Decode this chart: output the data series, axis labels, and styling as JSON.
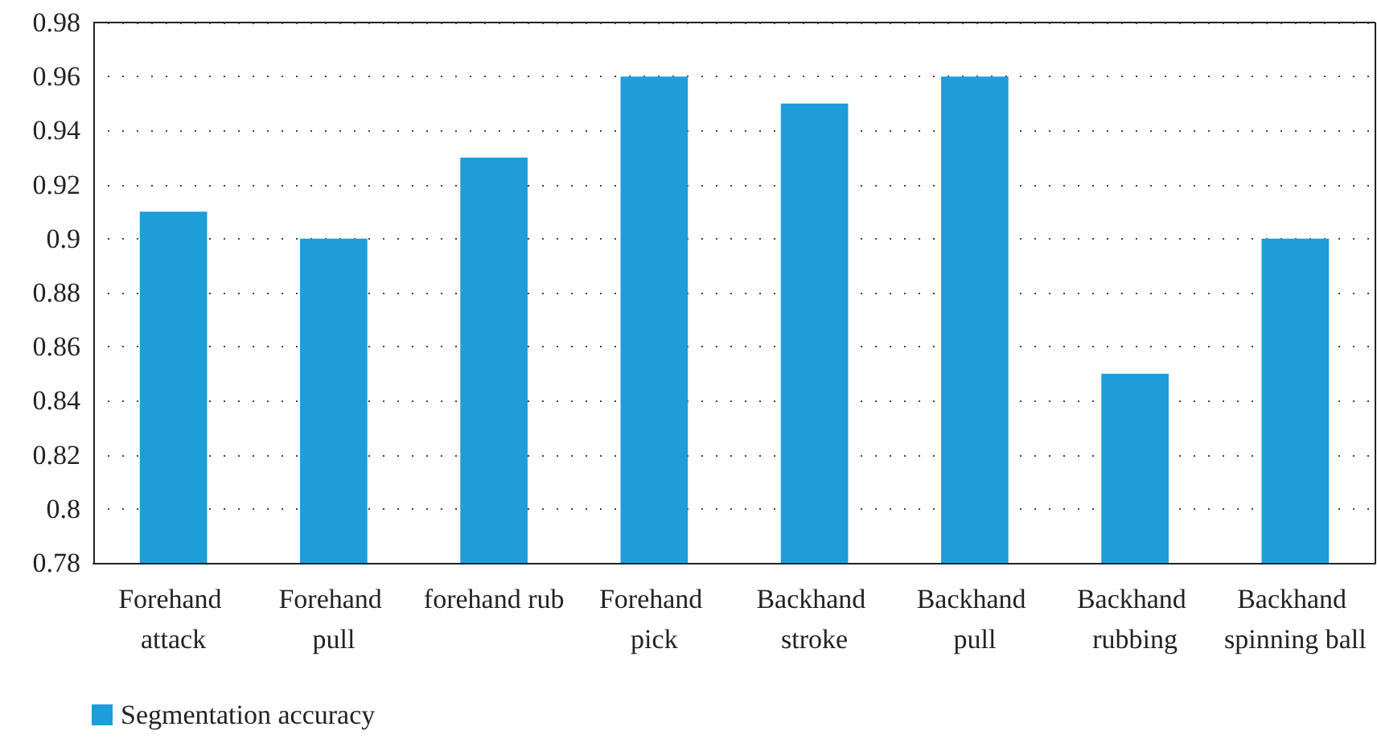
{
  "chart_data": {
    "type": "bar",
    "categories": [
      "Forehand attack",
      "Forehand pull",
      "forehand rub",
      "Forehand pick",
      "Backhand stroke",
      "Backhand pull",
      "Backhand rubbing",
      "Backhand spinning ball"
    ],
    "series": [
      {
        "name": "Segmentation accuracy",
        "color": "#1f9dd9",
        "values": [
          0.91,
          0.9,
          0.93,
          0.96,
          0.95,
          0.96,
          0.85,
          0.9
        ]
      }
    ],
    "ylim": [
      0.78,
      0.98
    ],
    "yticks": [
      0.78,
      0.8,
      0.82,
      0.84,
      0.86,
      0.88,
      0.9,
      0.92,
      0.94,
      0.96,
      0.98
    ],
    "grid": "y",
    "legend": "bottom left"
  }
}
